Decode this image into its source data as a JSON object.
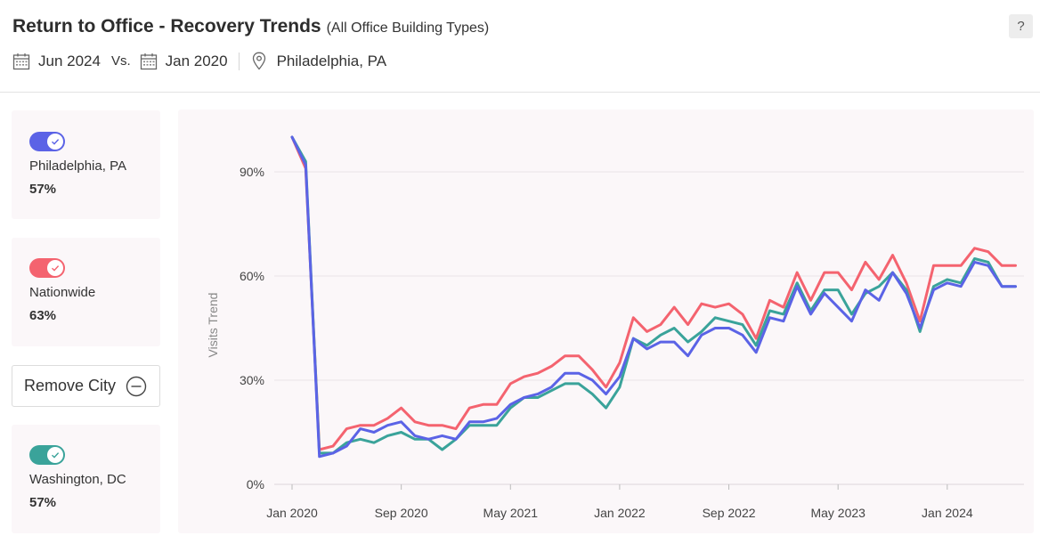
{
  "header": {
    "title": "Return to Office - Recovery Trends",
    "subtitle": "(All Office Building Types)",
    "help_label": "?",
    "date_current": "Jun 2024",
    "vs_label": "Vs.",
    "date_baseline": "Jan 2020",
    "location": "Philadelphia, PA"
  },
  "cards": [
    {
      "label": "Philadelphia, PA",
      "value": "57%",
      "color": "#5b63e6"
    },
    {
      "label": "Nationwide",
      "value": "63%",
      "color": "#f4636f"
    },
    {
      "label": "Washington, DC",
      "value": "57%",
      "color": "#3aa39a"
    }
  ],
  "remove_city_label": "Remove City",
  "colors": {
    "philadelphia": "#5b63e6",
    "nationwide": "#f4636f",
    "washington": "#3aa39a"
  },
  "chart_data": {
    "type": "line",
    "ylabel": "Visits Trend",
    "ylim": [
      0,
      100
    ],
    "y_ticks": [
      "0%",
      "30%",
      "60%",
      "90%"
    ],
    "x_tick_labels": [
      "Jan 2020",
      "Sep 2020",
      "May 2021",
      "Jan 2022",
      "Sep 2022",
      "May 2023",
      "Jan 2024"
    ],
    "x": [
      "2020-01",
      "2020-02",
      "2020-03",
      "2020-04",
      "2020-05",
      "2020-06",
      "2020-07",
      "2020-08",
      "2020-09",
      "2020-10",
      "2020-11",
      "2020-12",
      "2021-01",
      "2021-02",
      "2021-03",
      "2021-04",
      "2021-05",
      "2021-06",
      "2021-07",
      "2021-08",
      "2021-09",
      "2021-10",
      "2021-11",
      "2021-12",
      "2022-01",
      "2022-02",
      "2022-03",
      "2022-04",
      "2022-05",
      "2022-06",
      "2022-07",
      "2022-08",
      "2022-09",
      "2022-10",
      "2022-11",
      "2022-12",
      "2023-01",
      "2023-02",
      "2023-03",
      "2023-04",
      "2023-05",
      "2023-06",
      "2023-07",
      "2023-08",
      "2023-09",
      "2023-10",
      "2023-11",
      "2023-12",
      "2024-01",
      "2024-02",
      "2024-03",
      "2024-04",
      "2024-05",
      "2024-06"
    ],
    "series": [
      {
        "name": "Nationwide",
        "color": "#f4636f",
        "values": [
          100,
          91,
          10,
          11,
          16,
          17,
          17,
          19,
          22,
          18,
          17,
          17,
          16,
          22,
          23,
          23,
          29,
          31,
          32,
          34,
          37,
          37,
          33,
          28,
          35,
          48,
          44,
          46,
          51,
          46,
          52,
          51,
          52,
          49,
          42,
          53,
          51,
          61,
          53,
          61,
          61,
          56,
          64,
          59,
          66,
          58,
          47,
          63,
          63,
          63,
          68,
          67,
          63,
          63
        ]
      },
      {
        "name": "Washington, DC",
        "color": "#3aa39a",
        "values": [
          100,
          93,
          9,
          9,
          12,
          13,
          12,
          14,
          15,
          13,
          13,
          10,
          13,
          17,
          17,
          17,
          22,
          25,
          25,
          27,
          29,
          29,
          26,
          22,
          28,
          42,
          40,
          43,
          45,
          41,
          44,
          48,
          47,
          46,
          40,
          50,
          49,
          58,
          50,
          56,
          56,
          49,
          55,
          57,
          61,
          56,
          44,
          57,
          59,
          58,
          65,
          64,
          57,
          57
        ]
      },
      {
        "name": "Philadelphia, PA",
        "color": "#5b63e6",
        "values": [
          100,
          92,
          8,
          9,
          11,
          16,
          15,
          17,
          18,
          14,
          13,
          14,
          13,
          18,
          18,
          19,
          23,
          25,
          26,
          28,
          32,
          32,
          30,
          26,
          31,
          42,
          39,
          41,
          41,
          37,
          43,
          45,
          45,
          43,
          38,
          48,
          47,
          57,
          49,
          55,
          51,
          47,
          56,
          53,
          61,
          55,
          45,
          56,
          58,
          57,
          64,
          63,
          57,
          57
        ]
      }
    ]
  }
}
